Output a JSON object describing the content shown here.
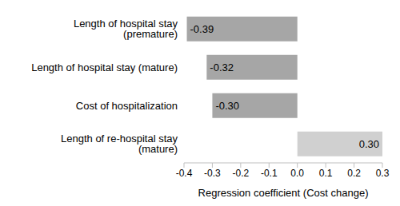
{
  "chart_data": {
    "type": "bar",
    "orientation": "horizontal",
    "categories": [
      "Length of hospital stay (premature)",
      "Length of hospital stay (mature)",
      "Cost of hospitalization",
      "Length of re-hospital stay (mature)"
    ],
    "values": [
      -0.39,
      -0.32,
      -0.3,
      0.3
    ],
    "value_labels": [
      "-0.39",
      "-0.32",
      "-0.30",
      "0.30"
    ],
    "colors": [
      "#a6a6a6",
      "#a6a6a6",
      "#a6a6a6",
      "#d0d0d0"
    ],
    "x_label": "Regression coefficient (Cost change)",
    "xlim": [
      -0.4,
      0.3
    ],
    "xticks": [
      -0.4,
      -0.3,
      -0.2,
      -0.1,
      {
        "value": 0,
        "label": "0.0"
      },
      0.1,
      0.2,
      0.3
    ],
    "grid": false,
    "data_labels": true
  }
}
